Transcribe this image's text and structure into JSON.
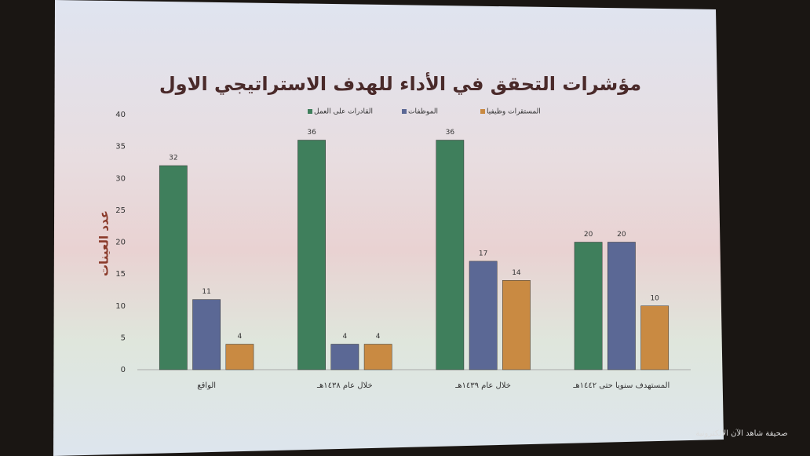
{
  "chart_data": {
    "type": "bar",
    "title": "مؤشرات التحقق في الأداء للهدف الاستراتيجي الاول",
    "y_label": "عدد العينات",
    "categories": [
      "الواقع",
      "خلال عام ١٤٣٨هـ",
      "خلال عام ١٤٣٩هـ",
      "المستهدف سنويا حتى ١٤٤٢هـ"
    ],
    "series": [
      {
        "name": "القادرات على العمل",
        "color": "#3f7f5c",
        "values": [
          32,
          36,
          36,
          20
        ]
      },
      {
        "name": "الموظفات",
        "color": "#5b6895",
        "values": [
          11,
          4,
          17,
          20
        ]
      },
      {
        "name": "المستقرات وظيفيا",
        "color": "#c98a42",
        "values": [
          4,
          4,
          14,
          10
        ]
      }
    ],
    "ylim": [
      0,
      40
    ],
    "yticks": [
      0,
      5,
      10,
      15,
      20,
      25,
      30,
      35,
      40
    ],
    "grid": false
  },
  "watermark": "صحيفة شاهد الآن الالكترونية"
}
